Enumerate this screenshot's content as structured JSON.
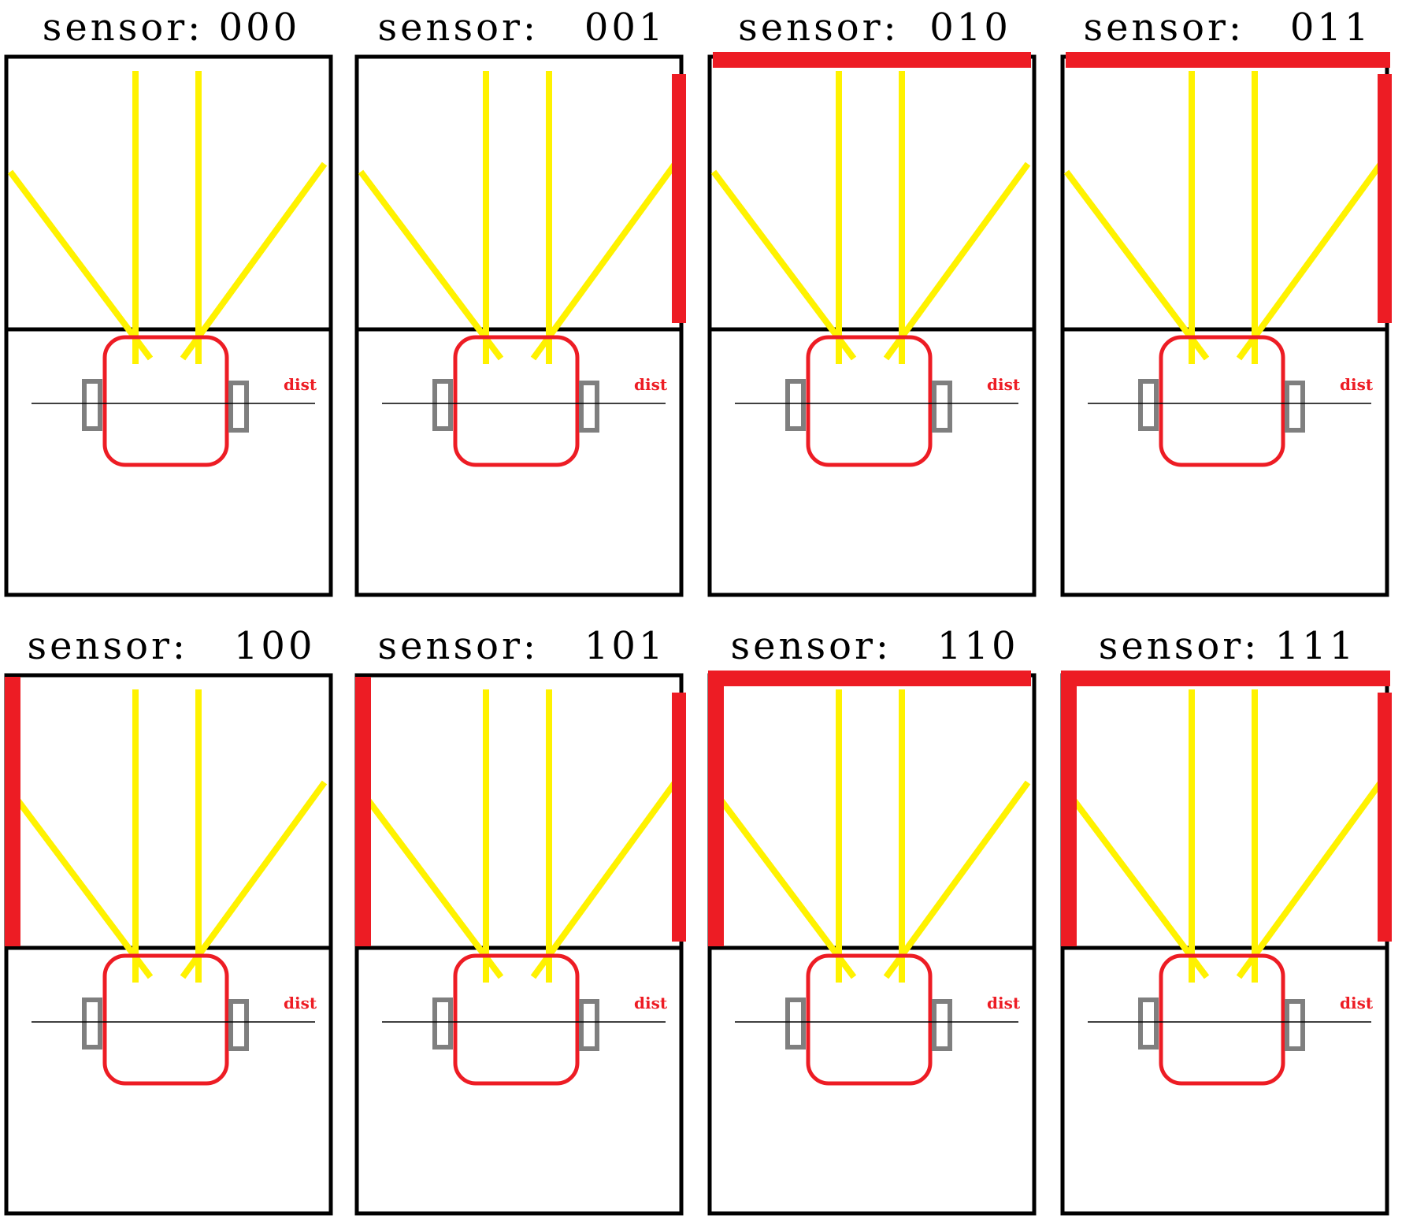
{
  "colors": {
    "wall": "#ed1c24",
    "ray": "#fff200",
    "frame": "#000000",
    "robot": "#ed1c24",
    "wheel": "#7f7f7f",
    "label": "#ed1c24"
  },
  "robot_label": "dist",
  "panels": [
    {
      "title": "sensor: 000",
      "code": "000",
      "walls": {
        "left": false,
        "front": false,
        "right": false
      }
    },
    {
      "title": "sensor:   001",
      "code": "001",
      "walls": {
        "left": false,
        "front": false,
        "right": true
      }
    },
    {
      "title": "sensor:  010",
      "code": "010",
      "walls": {
        "left": false,
        "front": true,
        "right": false
      }
    },
    {
      "title": "sensor:   011",
      "code": "011",
      "walls": {
        "left": false,
        "front": true,
        "right": true
      }
    },
    {
      "title": "sensor:   100",
      "code": "100",
      "walls": {
        "left": true,
        "front": false,
        "right": false
      }
    },
    {
      "title": "sensor:   101",
      "code": "101",
      "walls": {
        "left": true,
        "front": false,
        "right": true
      }
    },
    {
      "title": "sensor:   110",
      "code": "110",
      "walls": {
        "left": true,
        "front": true,
        "right": false
      }
    },
    {
      "title": "sensor: 111",
      "code": "111",
      "walls": {
        "left": true,
        "front": true,
        "right": true
      }
    }
  ]
}
